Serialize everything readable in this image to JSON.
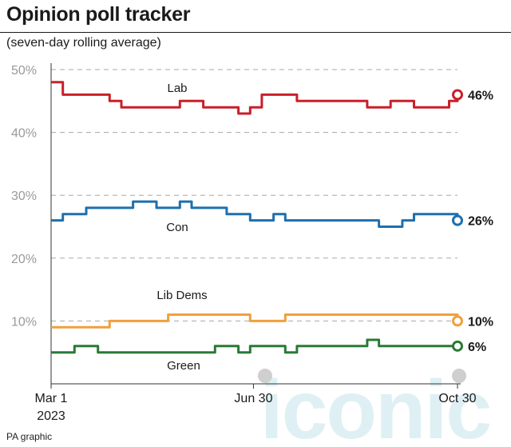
{
  "header": {
    "title": "Opinion poll tracker",
    "subtitle": "(seven-day rolling average)",
    "source": "PA graphic"
  },
  "watermark": {
    "text": "iconic"
  },
  "chart_data": {
    "type": "line",
    "title": "Opinion poll tracker",
    "subtitle": "(seven-day rolling average)",
    "ylim": [
      0,
      50
    ],
    "yticks": [
      "50%",
      "40%",
      "30%",
      "20%",
      "10%"
    ],
    "ytick_values": [
      50,
      40,
      30,
      20,
      10
    ],
    "xlim": [
      "2023-03-01",
      "2023-10-30"
    ],
    "xticks": [
      {
        "date": "2023-03-01",
        "label": "Mar 1",
        "sublabel": "2023"
      },
      {
        "date": "2023-06-30",
        "label": "Jun 30",
        "sublabel": ""
      },
      {
        "date": "2023-10-30",
        "label": "Oct 30",
        "sublabel": ""
      }
    ],
    "grid": true,
    "legend": "inline labels",
    "x": [
      "2023-03-01",
      "2023-03-08",
      "2023-03-15",
      "2023-03-22",
      "2023-03-29",
      "2023-04-05",
      "2023-04-12",
      "2023-04-19",
      "2023-04-26",
      "2023-05-03",
      "2023-05-10",
      "2023-05-17",
      "2023-05-24",
      "2023-05-31",
      "2023-06-07",
      "2023-06-14",
      "2023-06-21",
      "2023-06-28",
      "2023-07-05",
      "2023-07-12",
      "2023-07-19",
      "2023-07-26",
      "2023-08-02",
      "2023-08-09",
      "2023-08-16",
      "2023-08-23",
      "2023-08-30",
      "2023-09-06",
      "2023-09-13",
      "2023-09-20",
      "2023-09-27",
      "2023-10-04",
      "2023-10-11",
      "2023-10-18",
      "2023-10-25",
      "2023-10-30"
    ],
    "series": [
      {
        "name": "Lab",
        "color": "#c8202a",
        "end_label": "46%",
        "values": [
          48,
          46,
          46,
          46,
          46,
          45,
          44,
          44,
          44,
          44,
          44,
          45,
          45,
          44,
          44,
          44,
          43,
          44,
          46,
          46,
          46,
          45,
          45,
          45,
          45,
          45,
          45,
          44,
          44,
          45,
          45,
          44,
          44,
          44,
          45,
          46
        ]
      },
      {
        "name": "Con",
        "color": "#1f6fad",
        "end_label": "26%",
        "values": [
          26,
          27,
          27,
          28,
          28,
          28,
          28,
          29,
          29,
          28,
          28,
          29,
          28,
          28,
          28,
          27,
          27,
          26,
          26,
          27,
          26,
          26,
          26,
          26,
          26,
          26,
          26,
          26,
          25,
          25,
          26,
          27,
          27,
          27,
          27,
          26
        ]
      },
      {
        "name": "Lib Dems",
        "color": "#f0a03c",
        "end_label": "10%",
        "values": [
          9,
          9,
          9,
          9,
          9,
          10,
          10,
          10,
          10,
          10,
          11,
          11,
          11,
          11,
          11,
          11,
          11,
          10,
          10,
          10,
          11,
          11,
          11,
          11,
          11,
          11,
          11,
          11,
          11,
          11,
          11,
          11,
          11,
          11,
          11,
          10
        ]
      },
      {
        "name": "Green",
        "color": "#2a7a35",
        "end_label": "6%",
        "values": [
          5,
          5,
          6,
          6,
          5,
          5,
          5,
          5,
          5,
          5,
          5,
          5,
          5,
          5,
          6,
          6,
          5,
          6,
          6,
          6,
          5,
          6,
          6,
          6,
          6,
          6,
          6,
          7,
          6,
          6,
          6,
          6,
          6,
          6,
          6,
          6
        ]
      }
    ]
  }
}
